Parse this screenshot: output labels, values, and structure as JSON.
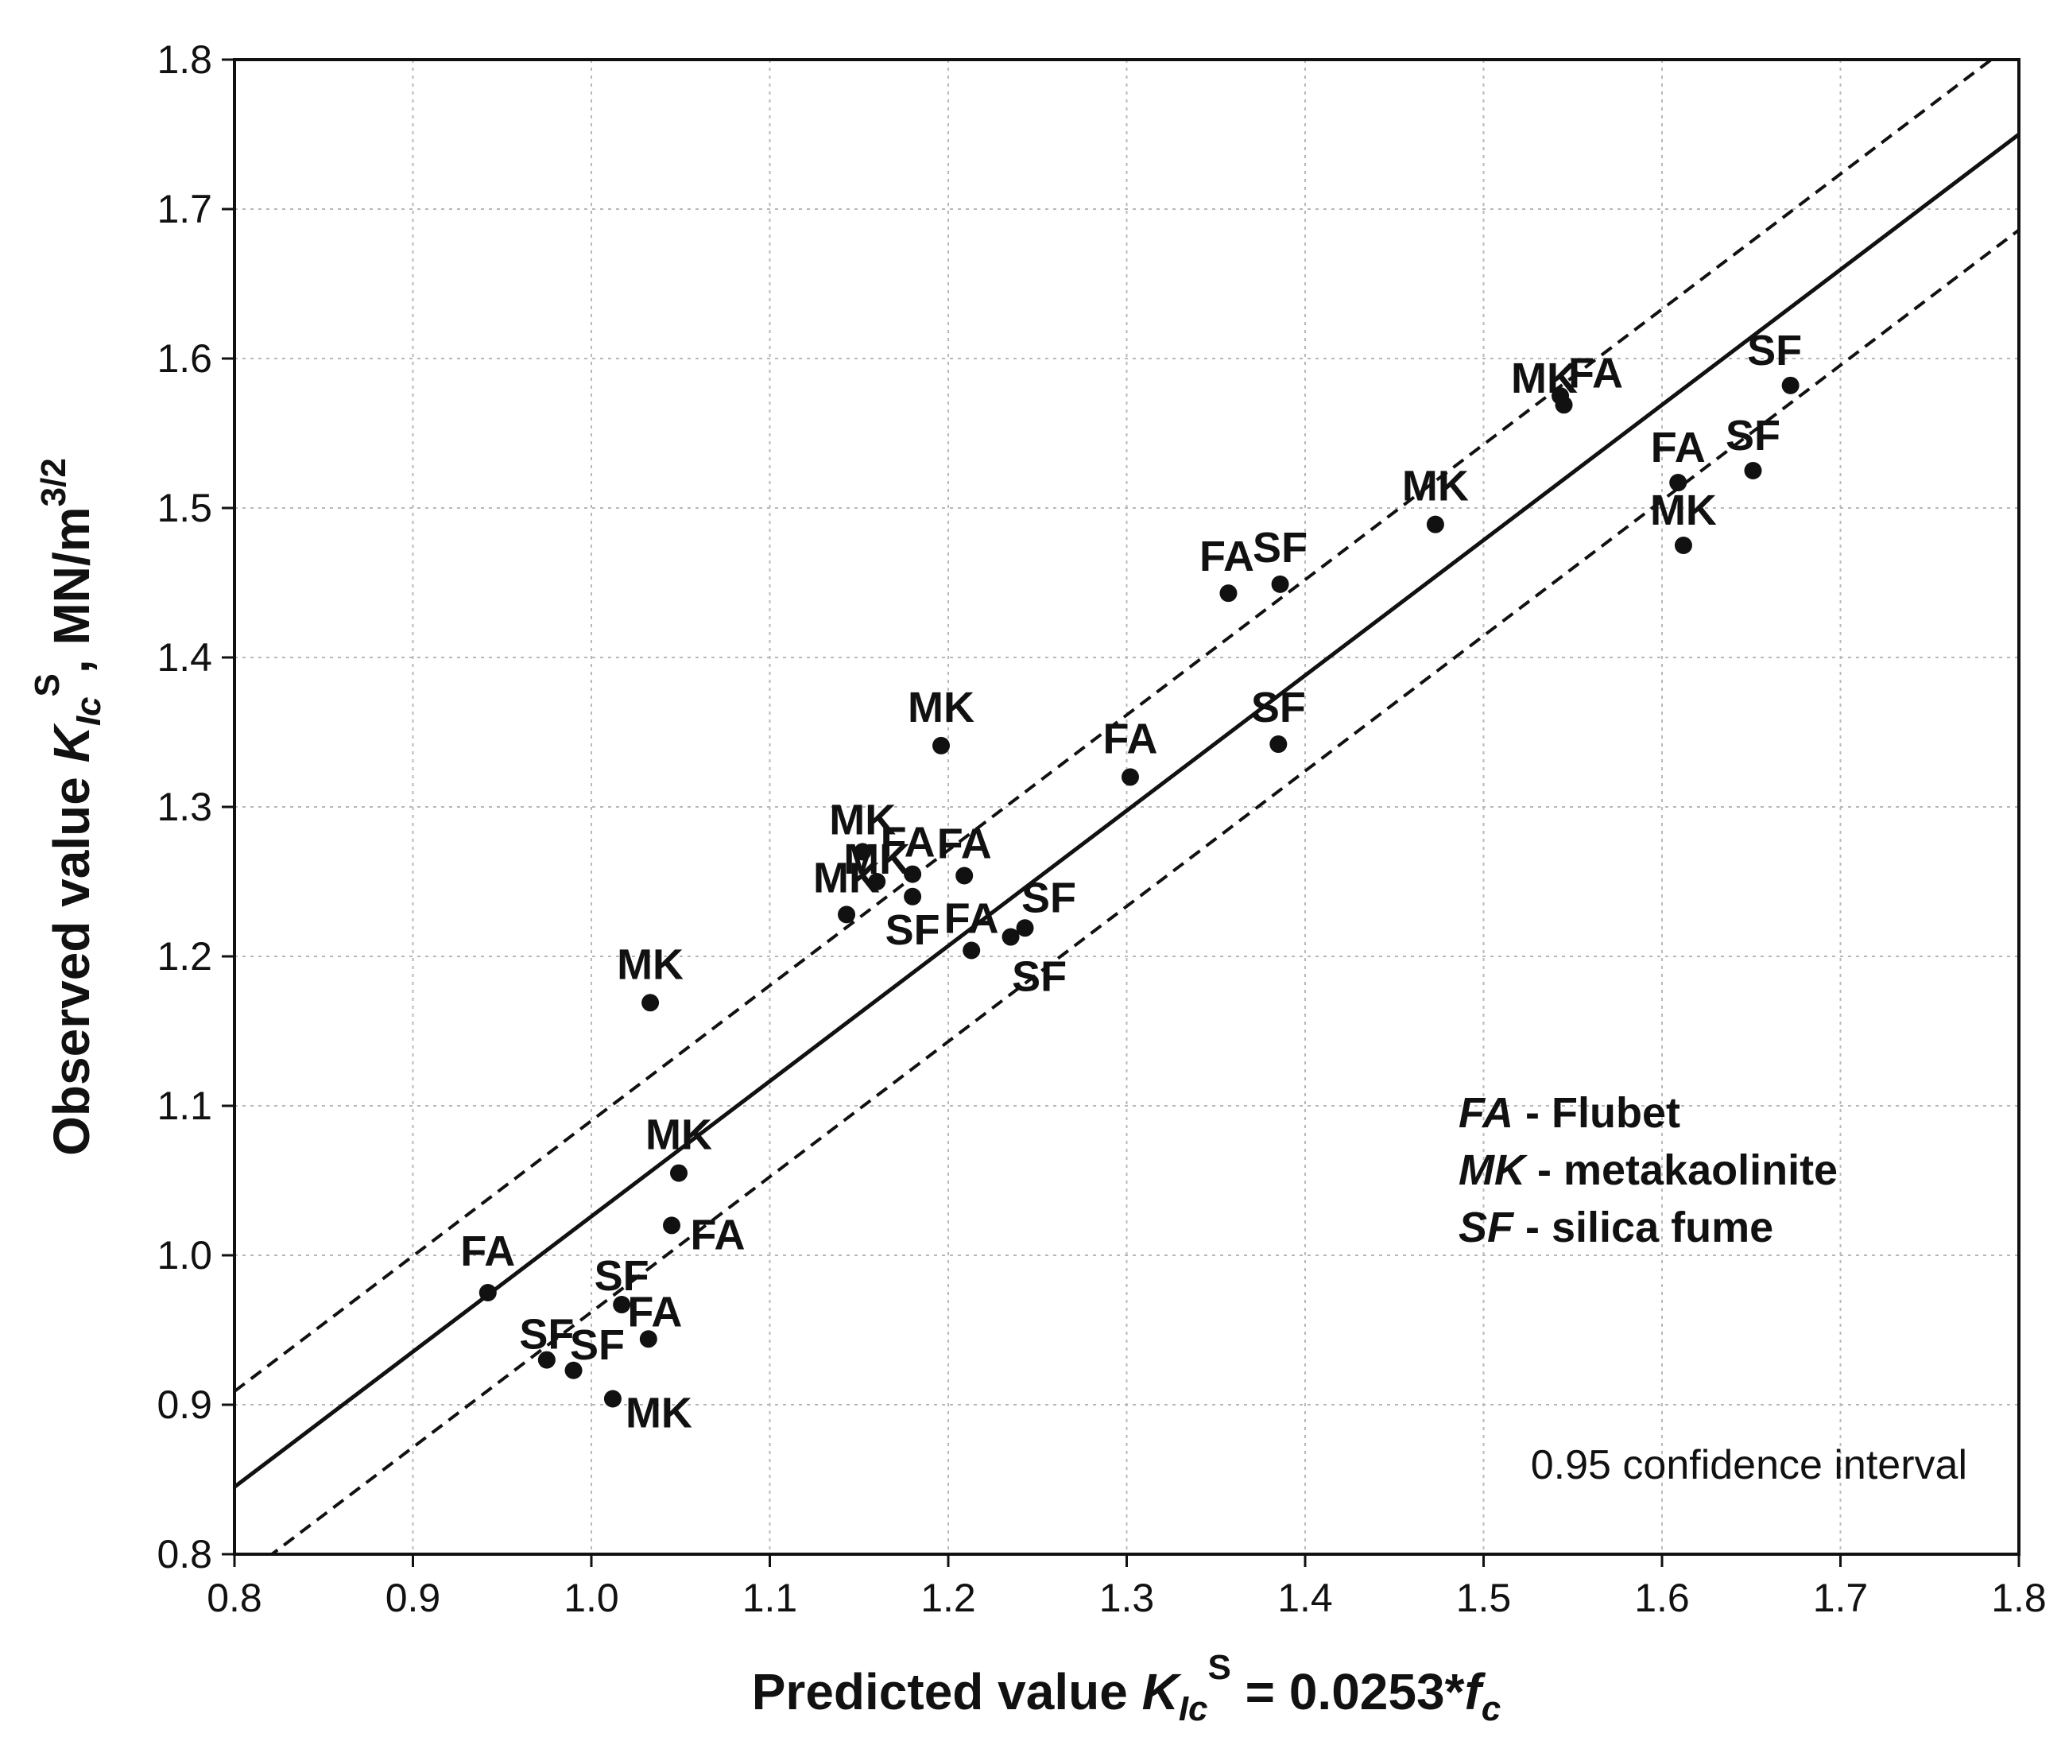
{
  "chart_data": {
    "type": "scatter",
    "title": "",
    "xlabel": {
      "prefix": "Predicted value ",
      "symbol": "K",
      "symbol_sub": "Ic",
      "symbol_sup": "S",
      "middle": " = 0.0253*",
      "var": "f",
      "var_sub": "c"
    },
    "ylabel": {
      "prefix": "Observed value ",
      "symbol": "K",
      "symbol_sub": "Ic",
      "symbol_sup": "S",
      "suffix": ", MN/m",
      "unit_sup": "3/2"
    },
    "xlim": [
      0.8,
      1.8
    ],
    "ylim": [
      0.8,
      1.8
    ],
    "x_ticks": [
      "0.8",
      "0.9",
      "1.0",
      "1.1",
      "1.2",
      "1.3",
      "1.4",
      "1.5",
      "1.6",
      "1.7",
      "1.8"
    ],
    "y_ticks": [
      "0.8",
      "0.9",
      "1.0",
      "1.1",
      "1.2",
      "1.3",
      "1.4",
      "1.5",
      "1.6",
      "1.7",
      "1.8"
    ],
    "grid": true,
    "fit_line": {
      "slope": 0.905,
      "intercept": 0.121,
      "style": "solid"
    },
    "confidence_bands": {
      "offset": 0.064,
      "style": "dashed",
      "label": "0.95 confidence interval"
    },
    "legend": [
      {
        "abbr": "FA",
        "desc": " - Flubet"
      },
      {
        "abbr": "MK",
        "desc": " - metakaolinite"
      },
      {
        "abbr": "SF",
        "desc": " - silica fume"
      }
    ],
    "points": [
      {
        "x": 0.942,
        "y": 0.975,
        "label": "FA",
        "dx": 0,
        "dy": -34
      },
      {
        "x": 0.975,
        "y": 0.93,
        "label": "SF",
        "dx": 0,
        "dy": -14
      },
      {
        "x": 0.99,
        "y": 0.923,
        "label": "SF",
        "dx": 30,
        "dy": -14
      },
      {
        "x": 1.012,
        "y": 0.904,
        "label": "MK",
        "dx": 58,
        "dy": 36
      },
      {
        "x": 1.017,
        "y": 0.967,
        "label": "SF",
        "dx": 0,
        "dy": -18
      },
      {
        "x": 1.032,
        "y": 0.944,
        "label": "FA",
        "dx": 8,
        "dy": -16
      },
      {
        "x": 1.045,
        "y": 1.02,
        "label": "FA",
        "dx": 58,
        "dy": 30
      },
      {
        "x": 1.049,
        "y": 1.055,
        "label": "MK",
        "dx": 0,
        "dy": -30
      },
      {
        "x": 1.033,
        "y": 1.169,
        "label": "MK",
        "dx": 0,
        "dy": -30
      },
      {
        "x": 1.143,
        "y": 1.228,
        "label": "MK",
        "dx": 0,
        "dy": -28
      },
      {
        "x": 1.152,
        "y": 1.27,
        "label": "MK",
        "dx": 0,
        "dy": -22
      },
      {
        "x": 1.16,
        "y": 1.25,
        "label": "MK",
        "dx": 0,
        "dy": -10
      },
      {
        "x": 1.18,
        "y": 1.255,
        "label": "FA",
        "dx": -6,
        "dy": -22
      },
      {
        "x": 1.18,
        "y": 1.24,
        "label": "SF",
        "dx": 0,
        "dy": 60
      },
      {
        "x": 1.209,
        "y": 1.254,
        "label": "FA",
        "dx": 0,
        "dy": -22
      },
      {
        "x": 1.213,
        "y": 1.204,
        "label": "FA",
        "dx": 0,
        "dy": -22
      },
      {
        "x": 1.235,
        "y": 1.213,
        "label": "SF",
        "dx": 36,
        "dy": 68
      },
      {
        "x": 1.243,
        "y": 1.219,
        "label": "SF",
        "dx": 30,
        "dy": -20
      },
      {
        "x": 1.196,
        "y": 1.341,
        "label": "MK",
        "dx": 0,
        "dy": -30
      },
      {
        "x": 1.302,
        "y": 1.32,
        "label": "FA",
        "dx": 0,
        "dy": -30
      },
      {
        "x": 1.357,
        "y": 1.443,
        "label": "FA",
        "dx": -2,
        "dy": -28
      },
      {
        "x": 1.386,
        "y": 1.449,
        "label": "SF",
        "dx": 0,
        "dy": -28
      },
      {
        "x": 1.385,
        "y": 1.342,
        "label": "SF",
        "dx": 0,
        "dy": -28
      },
      {
        "x": 1.473,
        "y": 1.489,
        "label": "MK",
        "dx": 0,
        "dy": -30
      },
      {
        "x": 1.543,
        "y": 1.575,
        "label": "MK",
        "dx": -20,
        "dy": -4
      },
      {
        "x": 1.545,
        "y": 1.569,
        "label": "FA",
        "dx": 40,
        "dy": -22
      },
      {
        "x": 1.609,
        "y": 1.517,
        "label": "FA",
        "dx": 0,
        "dy": -26
      },
      {
        "x": 1.612,
        "y": 1.475,
        "label": "MK",
        "dx": 0,
        "dy": -26
      },
      {
        "x": 1.651,
        "y": 1.525,
        "label": "SF",
        "dx": 0,
        "dy": -26
      },
      {
        "x": 1.672,
        "y": 1.582,
        "label": "SF",
        "dx": -20,
        "dy": -26
      }
    ]
  }
}
